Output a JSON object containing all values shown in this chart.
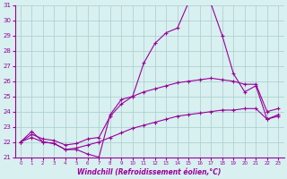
{
  "x": [
    0,
    1,
    2,
    3,
    4,
    5,
    6,
    7,
    8,
    9,
    10,
    11,
    12,
    13,
    14,
    15,
    16,
    17,
    18,
    19,
    20,
    21,
    22,
    23
  ],
  "line1": [
    22.0,
    22.7,
    22.0,
    21.9,
    21.5,
    21.5,
    21.2,
    21.0,
    23.8,
    24.8,
    25.0,
    27.2,
    28.5,
    29.2,
    29.5,
    31.2,
    31.2,
    31.1,
    29.0,
    26.5,
    25.3,
    25.7,
    23.5,
    23.7
  ],
  "line2": [
    22.0,
    22.5,
    22.2,
    22.1,
    21.8,
    21.9,
    22.2,
    22.3,
    23.7,
    24.5,
    25.0,
    25.3,
    25.5,
    25.7,
    25.9,
    26.0,
    26.1,
    26.2,
    26.1,
    26.0,
    25.8,
    25.8,
    24.0,
    24.2
  ],
  "line3": [
    22.0,
    22.3,
    22.0,
    21.9,
    21.5,
    21.6,
    21.8,
    22.0,
    22.3,
    22.6,
    22.9,
    23.1,
    23.3,
    23.5,
    23.7,
    23.8,
    23.9,
    24.0,
    24.1,
    24.1,
    24.2,
    24.2,
    23.5,
    23.8
  ],
  "color": "#990099",
  "bg_color": "#d8f0f0",
  "grid_color": "#aacccc",
  "xlabel": "Windchill (Refroidissement éolien,°C)",
  "ylim": [
    21,
    31
  ],
  "xlim": [
    -0.5,
    23.5
  ],
  "yticks": [
    21,
    22,
    23,
    24,
    25,
    26,
    27,
    28,
    29,
    30,
    31
  ],
  "xticks": [
    0,
    1,
    2,
    3,
    4,
    5,
    6,
    7,
    8,
    9,
    10,
    11,
    12,
    13,
    14,
    15,
    16,
    17,
    18,
    19,
    20,
    21,
    22,
    23
  ]
}
